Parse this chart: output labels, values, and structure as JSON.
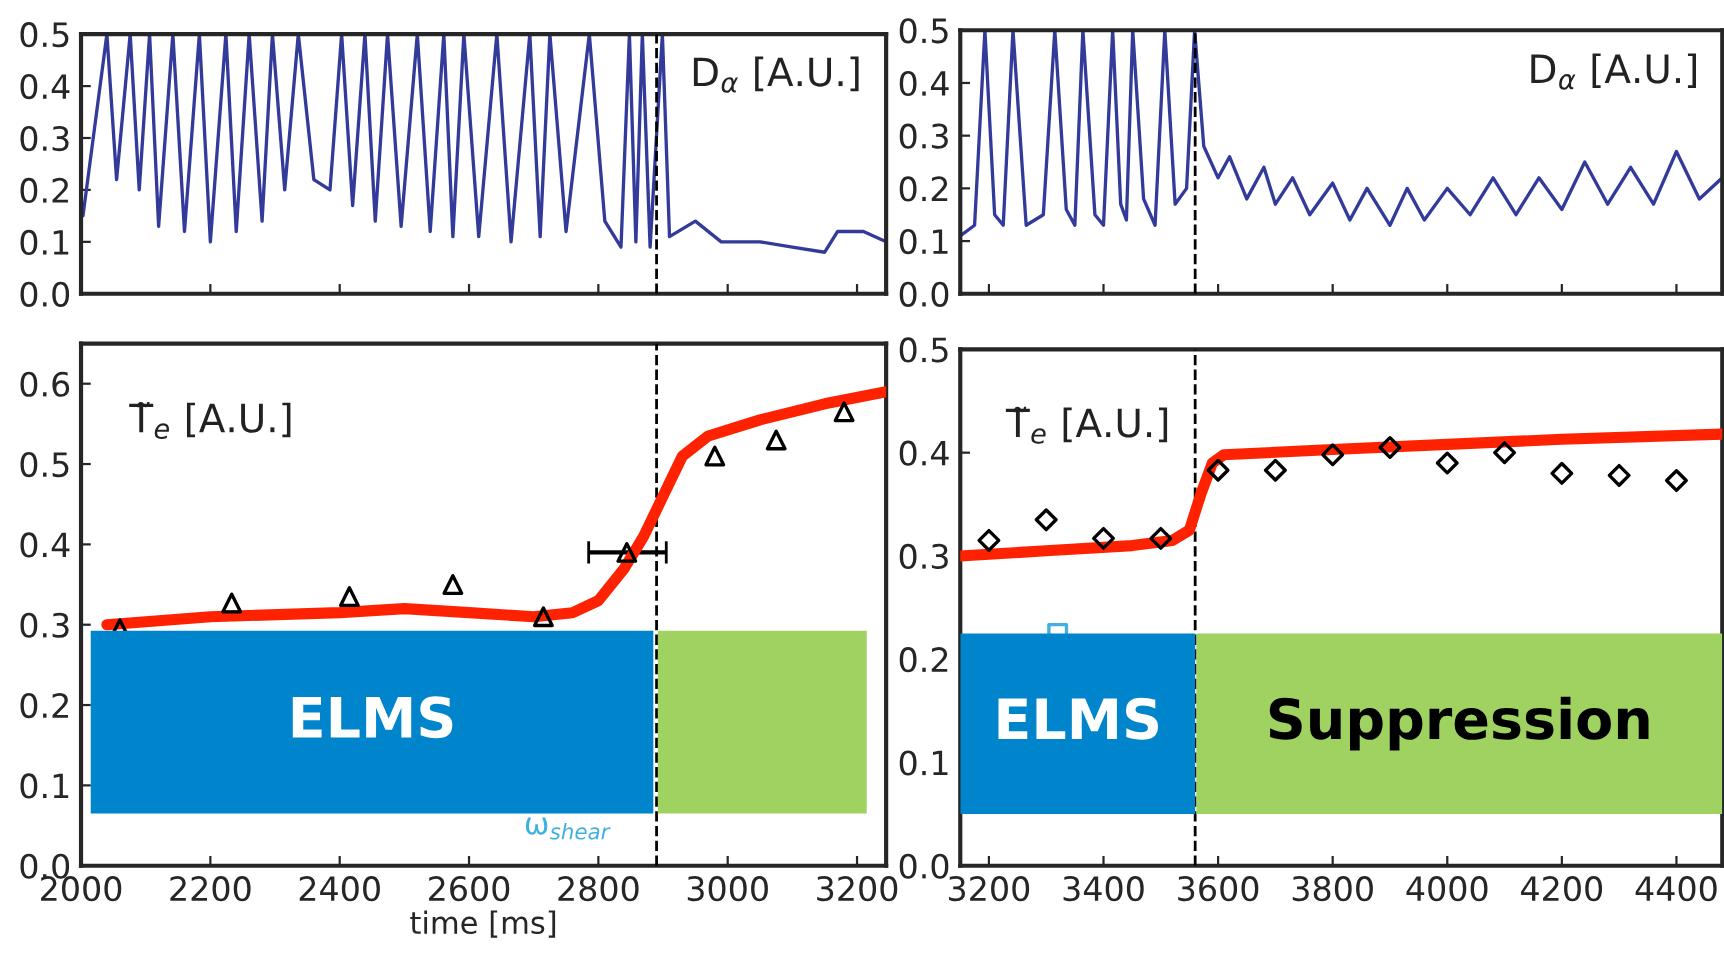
{
  "chart_data": [
    {
      "type": "line",
      "annotations": [
        "D$_{α}$ [A.U.]"
      ],
      "xlim": [
        2000,
        3245
      ],
      "xticks": [
        {
          "value": 2000,
          "label": null
        },
        {
          "value": 2200,
          "label": null
        },
        {
          "value": 2400,
          "label": null
        },
        {
          "value": 2600,
          "label": null
        },
        {
          "value": 2800,
          "label": null
        },
        {
          "value": 3000,
          "label": null
        },
        {
          "value": 3200,
          "label": null
        }
      ],
      "ylim": [
        0,
        0.5
      ],
      "yticks": [
        {
          "value": 0,
          "label": "0.0"
        },
        {
          "value": 0.1,
          "label": "0.1"
        },
        {
          "value": 0.2,
          "label": "0.2"
        },
        {
          "value": 0.3,
          "label": "0.3"
        },
        {
          "value": 0.4,
          "label": "0.4"
        },
        {
          "value": 0.5,
          "label": "0.5"
        }
      ],
      "tick_labels": "y",
      "ref_lines": [
        {
          "axis": "x",
          "value": 2890,
          "line_style": "dashed",
          "color": "#000000"
        }
      ],
      "series": [
        {
          "color": "#333b9a",
          "x": [
            2003,
            2040,
            2055,
            2076,
            2090,
            2106,
            2120,
            2142,
            2160,
            2183,
            2200,
            2224,
            2240,
            2260,
            2280,
            2296,
            2315,
            2336,
            2360,
            2385,
            2403,
            2420,
            2439,
            2455,
            2474,
            2495,
            2520,
            2540,
            2561,
            2575,
            2592,
            2615,
            2643,
            2665,
            2694,
            2710,
            2725,
            2750,
            2786,
            2810,
            2835,
            2848,
            2858,
            2868,
            2880,
            2899,
            2910,
            2950,
            2990,
            3050,
            3100,
            3150,
            3170,
            3210,
            3245
          ],
          "values": [
            0.15,
            0.5,
            0.22,
            0.5,
            0.2,
            0.5,
            0.13,
            0.5,
            0.12,
            0.5,
            0.1,
            0.5,
            0.12,
            0.5,
            0.14,
            0.5,
            0.2,
            0.5,
            0.22,
            0.2,
            0.5,
            0.17,
            0.5,
            0.14,
            0.5,
            0.13,
            0.5,
            0.12,
            0.5,
            0.11,
            0.5,
            0.11,
            0.5,
            0.1,
            0.5,
            0.11,
            0.5,
            0.12,
            0.5,
            0.14,
            0.09,
            0.5,
            0.1,
            0.5,
            0.09,
            0.5,
            0.11,
            0.14,
            0.1,
            0.1,
            0.09,
            0.08,
            0.12,
            0.12,
            0.1
          ]
        }
      ]
    },
    {
      "type": "line",
      "annotations": [
        "D$_{α}$ [A.U.]"
      ],
      "xlim": [
        3150,
        4480
      ],
      "xticks": [
        {
          "value": 3200,
          "label": null
        },
        {
          "value": 3400,
          "label": null
        },
        {
          "value": 3600,
          "label": null
        },
        {
          "value": 3800,
          "label": null
        },
        {
          "value": 4000,
          "label": null
        },
        {
          "value": 4200,
          "label": null
        },
        {
          "value": 4400,
          "label": null
        }
      ],
      "ylim": [
        0,
        0.5
      ],
      "yticks": [
        {
          "value": 0,
          "label": "0.0"
        },
        {
          "value": 0.1,
          "label": "0.1"
        },
        {
          "value": 0.2,
          "label": "0.2"
        },
        {
          "value": 0.3,
          "label": "0.3"
        },
        {
          "value": 0.4,
          "label": "0.4"
        },
        {
          "value": 0.5,
          "label": "0.5"
        }
      ],
      "tick_labels": "y",
      "ref_lines": [
        {
          "axis": "x",
          "value": 3560,
          "line_style": "dashed",
          "color": "#000000"
        }
      ],
      "series": [
        {
          "color": "#333b9a",
          "x": [
            3150,
            3175,
            3193,
            3210,
            3225,
            3242,
            3265,
            3295,
            3315,
            3335,
            3350,
            3364,
            3385,
            3400,
            3416,
            3430,
            3440,
            3451,
            3470,
            3490,
            3507,
            3525,
            3545,
            3559,
            3575,
            3600,
            3620,
            3650,
            3680,
            3700,
            3730,
            3760,
            3800,
            3830,
            3860,
            3900,
            3930,
            3960,
            4000,
            4040,
            4080,
            4120,
            4160,
            4200,
            4240,
            4280,
            4320,
            4360,
            4400,
            4440,
            4480
          ],
          "values": [
            0.11,
            0.13,
            0.5,
            0.15,
            0.13,
            0.5,
            0.13,
            0.15,
            0.5,
            0.16,
            0.13,
            0.5,
            0.15,
            0.13,
            0.5,
            0.17,
            0.14,
            0.5,
            0.18,
            0.13,
            0.5,
            0.17,
            0.2,
            0.5,
            0.28,
            0.22,
            0.26,
            0.18,
            0.24,
            0.17,
            0.22,
            0.15,
            0.21,
            0.14,
            0.2,
            0.13,
            0.2,
            0.14,
            0.2,
            0.15,
            0.22,
            0.15,
            0.22,
            0.16,
            0.25,
            0.17,
            0.24,
            0.17,
            0.27,
            0.18,
            0.22
          ]
        }
      ]
    },
    {
      "type": "line",
      "xlabel": "time [ms]",
      "annotations": [
        "T̃$_{e}$ [A.U.]",
        "ω$_{shear}$"
      ],
      "xlim": [
        2000,
        3245
      ],
      "xticks": [
        2000,
        2200,
        2400,
        2600,
        2800,
        3000,
        3200
      ],
      "ylim": [
        0,
        0.65
      ],
      "yticks": [
        {
          "value": 0,
          "label": "0.0"
        },
        0.1,
        0.2,
        0.3,
        0.4,
        0.5,
        0.6
      ],
      "ref_lines": [
        {
          "axis": "x",
          "value": 2890,
          "line_style": "dashed",
          "color": "#000000"
        }
      ],
      "bands": [
        {
          "axis": "x",
          "from": 2015,
          "to": 2885,
          "label": "ELMS",
          "color": "#0085cc"
        },
        {
          "axis": "x",
          "from": 2892,
          "to": 3215,
          "label": null,
          "color": "#a0d262"
        }
      ],
      "series": [
        {
          "type": "scatter",
          "marker": "triangle",
          "color": "#000000",
          "x": [
            2060,
            2233,
            2415,
            2575,
            2715,
            2844,
            2980,
            3075,
            3180
          ],
          "values": [
            0.295,
            0.327,
            0.335,
            0.35,
            0.31,
            0.39,
            0.51,
            0.53,
            0.565
          ],
          "xerrors": [
            null,
            null,
            null,
            null,
            null,
            [
              2785,
              2905
            ],
            null,
            null,
            null
          ]
        },
        {
          "type": "line",
          "color": "#ff2200",
          "x": [
            2040,
            2200,
            2400,
            2500,
            2600,
            2700,
            2760,
            2800,
            2840,
            2870,
            2900,
            2930,
            2970,
            3050,
            3150,
            3245
          ],
          "values": [
            0.3,
            0.31,
            0.315,
            0.32,
            0.315,
            0.31,
            0.315,
            0.33,
            0.37,
            0.41,
            0.46,
            0.51,
            0.535,
            0.555,
            0.575,
            0.59
          ]
        }
      ]
    },
    {
      "type": "line",
      "annotations": [
        "T̃$_{e}$ [A.U.]"
      ],
      "xlim": [
        3150,
        4480
      ],
      "xticks": [
        3200,
        3400,
        3600,
        3800,
        4000,
        4200,
        4400
      ],
      "ylim": [
        0,
        0.5
      ],
      "yticks": [
        {
          "value": 0,
          "label": "0.0"
        },
        0.1,
        0.2,
        0.3,
        0.4,
        0.5
      ],
      "ref_lines": [
        {
          "axis": "x",
          "value": 3560,
          "line_style": "dashed",
          "color": "#000000"
        }
      ],
      "bands": [
        {
          "axis": "x",
          "from": 3150,
          "to": 3560,
          "label": "ELMS",
          "color": "#0085cc"
        },
        {
          "axis": "x",
          "from": 3562,
          "to": 4480,
          "label": "Suppression",
          "color": "#a0d262"
        }
      ],
      "series": [
        {
          "type": "scatter",
          "marker": "diamond",
          "color": "#000000",
          "x": [
            3200,
            3300,
            3400,
            3500,
            3600,
            3700,
            3800,
            3900,
            4000,
            4100,
            4200,
            4300,
            4400
          ],
          "values": [
            0.315,
            0.335,
            0.317,
            0.317,
            0.383,
            0.383,
            0.398,
            0.405,
            0.39,
            0.4,
            0.38,
            0.378,
            0.373
          ]
        },
        {
          "type": "scatter",
          "marker": "square",
          "color": "#3fb0e0",
          "x": [
            3320
          ],
          "values": [
            0.225
          ]
        },
        {
          "type": "line",
          "color": "#ff2200",
          "x": [
            3150,
            3300,
            3450,
            3520,
            3550,
            3570,
            3590,
            3610,
            3800,
            4000,
            4200,
            4480
          ],
          "values": [
            0.3,
            0.305,
            0.31,
            0.315,
            0.325,
            0.36,
            0.39,
            0.398,
            0.403,
            0.408,
            0.413,
            0.418
          ]
        }
      ]
    }
  ]
}
